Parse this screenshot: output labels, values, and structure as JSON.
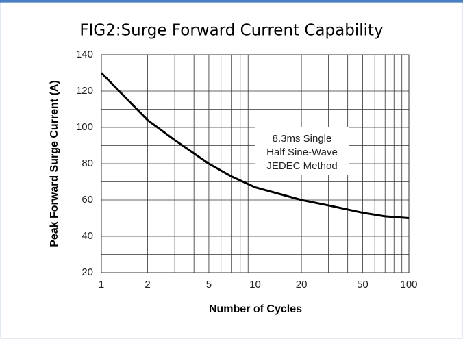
{
  "chart_data": {
    "type": "line",
    "title": "FIG2:Surge Forward Current Capability",
    "x_label": "Number of Cycles",
    "y_label": "Peak Forward Surge Current (A)",
    "annotation": [
      "8.3ms Single",
      "Half Sine-Wave",
      "JEDEC Method"
    ],
    "x": [
      1,
      2,
      3,
      5,
      7,
      10,
      20,
      30,
      50,
      70,
      100
    ],
    "series": [
      {
        "name": "Surge Current",
        "color": "#000000",
        "values": [
          130,
          104,
          93,
          80,
          73,
          67,
          60,
          57,
          53,
          51,
          50
        ]
      }
    ],
    "xscale": "log",
    "xlim": [
      1,
      100
    ],
    "xticks": [
      1,
      2,
      5,
      10,
      20,
      50,
      100
    ],
    "minor_xticks": [
      3,
      4,
      6,
      7,
      8,
      9,
      30,
      40,
      60,
      70,
      80,
      90
    ],
    "ylim": [
      20,
      140
    ],
    "yticks": [
      20,
      40,
      60,
      80,
      100,
      120,
      140
    ],
    "minor_yticks": [
      30,
      50,
      70,
      90,
      110,
      130
    ],
    "grid": true
  }
}
